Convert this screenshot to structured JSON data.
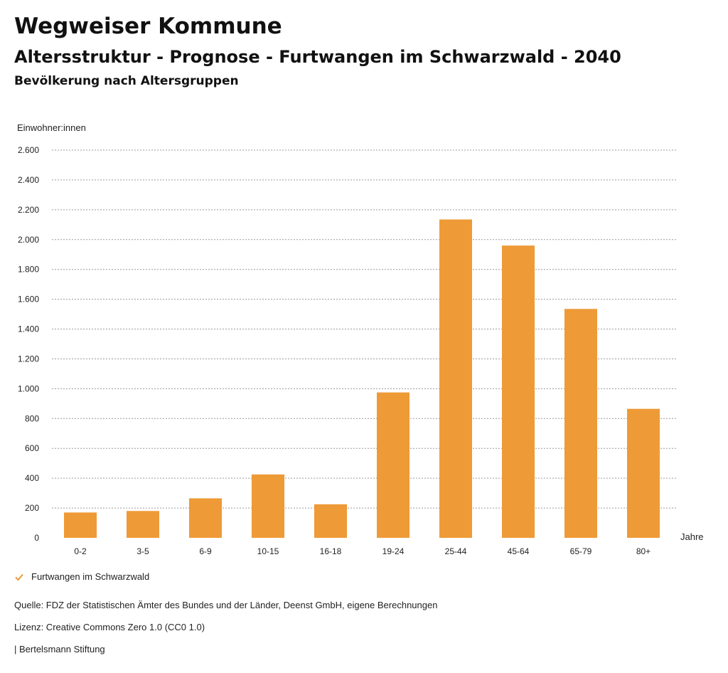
{
  "header": {
    "title": "Wegweiser Kommune",
    "subtitle": "Altersstruktur - Prognose - Furtwangen im Schwarzwald - 2040",
    "subsubtitle": "Bevölkerung nach Altersgruppen"
  },
  "chart_data": {
    "type": "bar",
    "title": "Bevölkerung nach Altersgruppen",
    "ylabel": "Einwohner:innen",
    "xlabel": "Jahre",
    "ylim": [
      0,
      2600
    ],
    "yticks": [
      0,
      200,
      400,
      600,
      800,
      1000,
      1200,
      1400,
      1600,
      1800,
      2000,
      2200,
      2400,
      2600
    ],
    "ytick_labels": [
      "0",
      "200",
      "400",
      "600",
      "800",
      "1.000",
      "1.200",
      "1.400",
      "1.600",
      "1.800",
      "2.000",
      "2.200",
      "2.400",
      "2.600"
    ],
    "categories": [
      "0-2",
      "3-5",
      "6-9",
      "10-15",
      "16-18",
      "19-24",
      "25-44",
      "45-64",
      "65-79",
      "80+"
    ],
    "series": [
      {
        "name": "Furtwangen im Schwarzwald",
        "values": [
          170,
          180,
          265,
          425,
          225,
          975,
          2135,
          1960,
          1535,
          865
        ],
        "color": "#ee9a37"
      }
    ],
    "grid": true,
    "legend": "bottom-left"
  },
  "footer": {
    "source": "Quelle: FDZ der Statistischen Ämter des Bundes und der Länder, Deenst GmbH, eigene Berechnungen",
    "license": "Lizenz: Creative Commons Zero 1.0 (CC0 1.0)",
    "brand": "| Bertelsmann Stiftung"
  }
}
